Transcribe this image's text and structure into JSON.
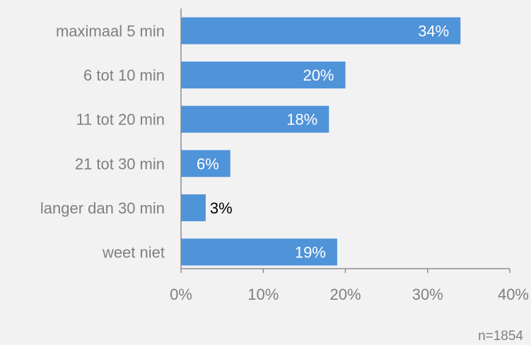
{
  "colors": {
    "background": "#f2f2f2",
    "bar": "#4f93d9",
    "label_inside": "#ffffff",
    "label_outside": "#000000",
    "axis_text": "#7f7f7f",
    "axis_line": "#8c8c8c"
  },
  "chart_data": {
    "type": "bar",
    "orientation": "horizontal",
    "categories": [
      "maximaal 5 min",
      "6 tot 10 min",
      "11 tot 20 min",
      "21 tot 30 min",
      "langer dan 30 min",
      "weet niet"
    ],
    "values": [
      34,
      20,
      18,
      6,
      3,
      19
    ],
    "value_labels": [
      "34%",
      "20%",
      "18%",
      "6%",
      "3%",
      "19%"
    ],
    "xlim": [
      0,
      40
    ],
    "x_ticks": [
      0,
      10,
      20,
      30,
      40
    ],
    "x_tick_labels": [
      "0%",
      "10%",
      "20%",
      "30%",
      "40%"
    ],
    "grid": false,
    "note": "n=1854"
  }
}
